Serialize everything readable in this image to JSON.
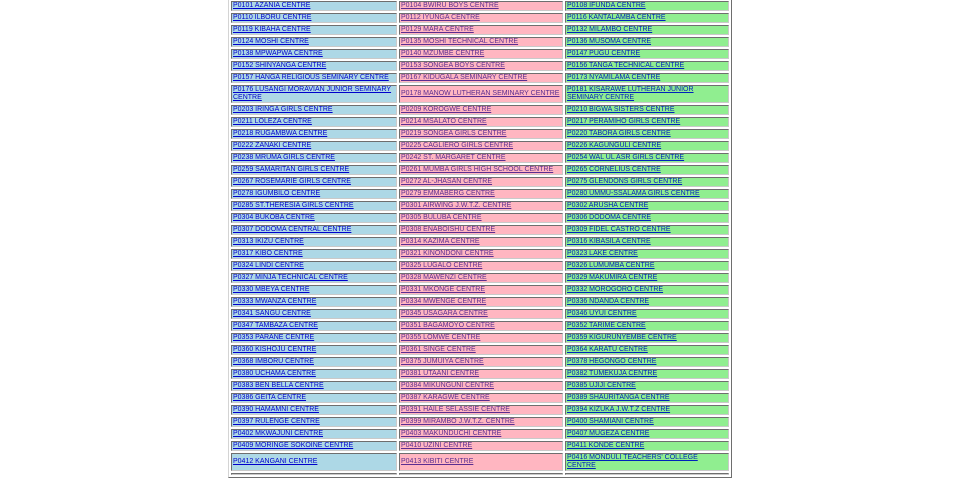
{
  "page": {
    "background": "#ffffff"
  },
  "table": {
    "name": "exam-centres-table",
    "columns": [
      {
        "name": "column-1",
        "background": "#add8e6",
        "link_color": "#0000cc"
      },
      {
        "name": "column-2",
        "background": "#ffb6c1",
        "link_color": "#5c2d91"
      },
      {
        "name": "column-3",
        "background": "#90ee90",
        "link_color": "#0022bb"
      }
    ],
    "rows": [
      [
        "P0101 AZANIA CENTRE",
        "P0104 BWIRU BOYS CENTRE",
        "P0108 IFUNDA CENTRE"
      ],
      [
        "P0110 ILBORU CENTRE",
        "P0112 IYUNGA CENTRE",
        "P0116 KANTALAMBA CENTRE"
      ],
      [
        "P0119 KIBAHA CENTRE",
        "P0129 MARA CENTRE",
        "P0132 MILAMBO CENTRE"
      ],
      [
        "P0124 MOSHI CENTRE",
        "P0135 MOSHI TECHNICAL CENTRE",
        "P0136 MUSOMA CENTRE"
      ],
      [
        "P0138 MPWAPWA CENTRE",
        "P0140 MZUMBE CENTRE",
        "P0147 PUGU CENTRE"
      ],
      [
        "P0152 SHINYANGA CENTRE",
        "P0153 SONGEA BOYS CENTRE",
        "P0156 TANGA TECHNICAL CENTRE"
      ],
      [
        "P0157 HANGA RELIGIOUS SEMINARY CENTRE",
        "P0167 KIDUGALA SEMINARY CENTRE",
        "P0173 NYAMILAMA CENTRE"
      ],
      [
        "P0176 LUSANGI MORAVIAN JUNIOR SEMINARY CENTRE",
        "P0178 MANOW LUTHERAN SEMINARY CENTRE",
        "P0181 KISARAWE LUTHERAN JUNIOR SEMINARY CENTRE"
      ],
      [
        "P0203 IRINGA GIRLS CENTRE",
        "P0209 KOROGWE CENTRE",
        "P0210 BIGWA SISTERS CENTRE"
      ],
      [
        "P0211 LOLEZA CENTRE",
        "P0214 MSALATO CENTRE",
        "P0217 PERAMIHO GIRLS CENTRE"
      ],
      [
        "P0218 RUGAMBWA CENTRE",
        "P0219 SONGEA GIRLS CENTRE",
        "P0220 TABORA GIRLS CENTRE"
      ],
      [
        "P0222 ZANAKI CENTRE",
        "P0225 CAGLIERO GIRLS CENTRE",
        "P0226 KAGUNGULI CENTRE"
      ],
      [
        "P0238 MRUMA GIRLS CENTRE",
        "P0242 ST. MARGARET CENTRE",
        "P0254 WAL UL ASR GIRLS CENTRE"
      ],
      [
        "P0259 SAMARITAN GIRLS CENTRE",
        "P0261 MUMBA GIRLS HIGH SCHOOL CENTRE",
        "P0265 CORNELIUS CENTRE"
      ],
      [
        "P0267 ROSEMARIE GIRLS CENTRE",
        "P0272 AL-JHASAN CENTRE",
        "P0275 GLENDONS GIRLS CENTRE"
      ],
      [
        "P0278 IGUMBILO CENTRE",
        "P0279 EMMABERG CENTRE",
        "P0280 UMMU-SSALAMA GIRLS CENTRE"
      ],
      [
        "P0285 ST.THERESIA GIRLS CENTRE",
        "P0301 AIRWING J.W.T.Z. CENTRE",
        "P0302 ARUSHA CENTRE"
      ],
      [
        "P0304 BUKOBA CENTRE",
        "P0305 BULUBA CENTRE",
        "P0306 DODOMA CENTRE"
      ],
      [
        "P0307 DODOMA CENTRAL CENTRE",
        "P0308 ENABOISHU CENTRE",
        "P0309 FIDEL CASTRO CENTRE"
      ],
      [
        "P0313 IKIZU CENTRE",
        "P0314 KAZIMA CENTRE",
        "P0316 KIBASILA CENTRE"
      ],
      [
        "P0317 KIBO CENTRE",
        "P0321 KINONDONI CENTRE",
        "P0323 LAKE CENTRE"
      ],
      [
        "P0324 LINDI CENTRE",
        "P0325 LUGALO CENTRE",
        "P0326 LUMUMBA CENTRE"
      ],
      [
        "P0327 MINJA TECHNICAL CENTRE",
        "P0328 MAWENZI CENTRE",
        "P0329 MAKUMIRA CENTRE"
      ],
      [
        "P0330 MBEYA CENTRE",
        "P0331 MKONGE CENTRE",
        "P0332 MOROGORO CENTRE"
      ],
      [
        "P0333 MWANZA CENTRE",
        "P0334 MWENGE CENTRE",
        "P0336 NDANDA CENTRE"
      ],
      [
        "P0341 SANGU CENTRE",
        "P0345 USAGARA CENTRE",
        "P0346 UYUI CENTRE"
      ],
      [
        "P0347 TAMBAZA CENTRE",
        "P0351 BAGAMOYO CENTRE",
        "P0352 TARIME CENTRE"
      ],
      [
        "P0353 PARANE CENTRE",
        "P0355 LOMWE CENTRE",
        "P0359 KIGURUNYEMBE CENTRE"
      ],
      [
        "P0360 KISHOJU CENTRE",
        "P0361 SINGE CENTRE",
        "P0364 KARATU CENTRE"
      ],
      [
        "P0368 IMBORU CENTRE",
        "P0375 JUMUIYA CENTRE",
        "P0378 HEGONGO CENTRE"
      ],
      [
        "P0380 UCHAMA CENTRE",
        "P0381 UTAANI CENTRE",
        "P0382 TUMEKUJA CENTRE"
      ],
      [
        "P0383 BEN BELLA CENTRE",
        "P0384 MIKUNGUNI CENTRE",
        "P0385 UJIJI CENTRE"
      ],
      [
        "P0386 GEITA CENTRE",
        "P0387 KARAGWE CENTRE",
        "P0389 SHAURITANGA CENTRE"
      ],
      [
        "P0390 HAMAMNI CENTRE",
        "P0391 HAILE SELASSIE CENTRE",
        "P0394 KIZUKA J.W.T.Z CENTRE"
      ],
      [
        "P0397 RULENGE CENTRE",
        "P0399 MIRAMBO J.W.T.Z. CENTRE",
        "P0400 SHAMIANI CENTRE"
      ],
      [
        "P0402 MKWAJUNI CENTRE",
        "P0403 MAKUNDUCHI CENTRE",
        "P0407 MUGEZA CENTRE"
      ],
      [
        "P0409 MORINGE SOKOINE CENTRE",
        "P0410 UZINI CENTRE",
        "P0411 KONDE CENTRE"
      ],
      [
        "P0412 KANGANI CENTRE",
        "P0413 KIBITI CENTRE",
        "P0416 MONDULI TEACHERS' COLLEGE CENTRE"
      ],
      [
        "",
        "",
        ""
      ]
    ]
  }
}
